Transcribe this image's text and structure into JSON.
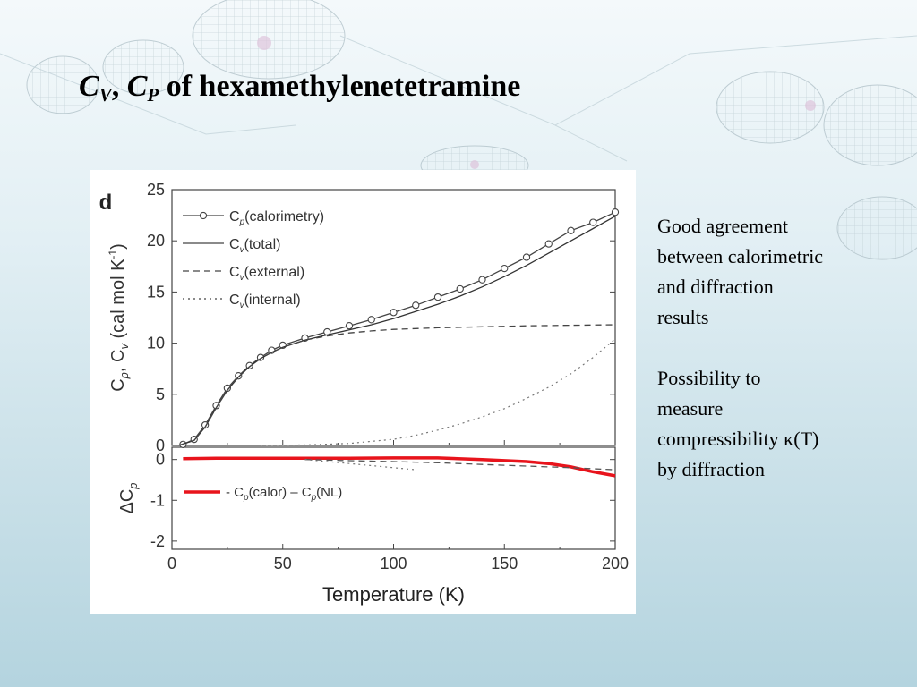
{
  "slide": {
    "title": {
      "c1": "C",
      "sub1": "V",
      "sep": ", ",
      "c2": "C",
      "sub2": "P",
      "rest": " of  hexamethylenetetramine"
    },
    "notes": [
      "Good agreement between calorimetric and diffraction results",
      "Possibility to measure compressibility κ(T) by diffraction"
    ]
  },
  "chart_data": [
    {
      "type": "line",
      "panel_label": "d",
      "ylabel": "Cp, Cv (cal mol K-1)",
      "ylim": [
        0,
        25
      ],
      "yticks": [
        0,
        5,
        10,
        15,
        20,
        25
      ],
      "xlim": [
        0,
        200
      ],
      "legend": [
        "Cp(calorimetry)",
        "Cv(total)",
        "Cv(external)",
        "Cv(internal)"
      ],
      "legend_position": "top-left",
      "series": [
        {
          "name": "Cp(calorimetry)",
          "style": "circles-line",
          "color": "#444444",
          "x": [
            5,
            10,
            15,
            20,
            25,
            30,
            35,
            40,
            45,
            50,
            60,
            70,
            80,
            90,
            100,
            110,
            120,
            130,
            140,
            150,
            160,
            170,
            180,
            190,
            200
          ],
          "y": [
            0.1,
            0.6,
            2.0,
            3.9,
            5.6,
            6.8,
            7.8,
            8.6,
            9.3,
            9.8,
            10.5,
            11.1,
            11.7,
            12.3,
            13.0,
            13.7,
            14.5,
            15.3,
            16.2,
            17.3,
            18.4,
            19.7,
            21.0,
            21.8,
            22.8
          ]
        },
        {
          "name": "Cv(total)",
          "style": "solid",
          "color": "#333333",
          "x": [
            3,
            10,
            15,
            20,
            25,
            30,
            35,
            40,
            45,
            50,
            60,
            70,
            80,
            90,
            100,
            110,
            120,
            130,
            140,
            150,
            160,
            170,
            180,
            190,
            200
          ],
          "y": [
            0,
            0.5,
            1.8,
            3.7,
            5.4,
            6.7,
            7.7,
            8.5,
            9.1,
            9.6,
            10.3,
            10.8,
            11.3,
            11.8,
            12.4,
            13.1,
            13.8,
            14.6,
            15.5,
            16.5,
            17.6,
            18.8,
            20.0,
            21.2,
            22.4
          ]
        },
        {
          "name": "Cv(external)",
          "style": "dashed",
          "color": "#444444",
          "x": [
            3,
            10,
            15,
            20,
            25,
            30,
            35,
            40,
            45,
            50,
            60,
            70,
            80,
            90,
            100,
            120,
            140,
            160,
            180,
            200
          ],
          "y": [
            0,
            0.5,
            1.8,
            3.7,
            5.4,
            6.7,
            7.7,
            8.5,
            9.1,
            9.6,
            10.3,
            10.7,
            11.0,
            11.2,
            11.35,
            11.5,
            11.6,
            11.7,
            11.75,
            11.8
          ]
        },
        {
          "name": "Cv(internal)",
          "style": "dotted",
          "color": "#777777",
          "x": [
            40,
            60,
            80,
            100,
            110,
            120,
            130,
            140,
            150,
            160,
            170,
            180,
            190,
            200
          ],
          "y": [
            0,
            0.05,
            0.2,
            0.6,
            1.0,
            1.5,
            2.1,
            2.8,
            3.6,
            4.6,
            5.7,
            7.0,
            8.6,
            10.4
          ]
        }
      ]
    },
    {
      "type": "line",
      "xlabel": "Temperature (K)",
      "ylabel": "ΔCp",
      "xlim": [
        0,
        200
      ],
      "xticks": [
        0,
        50,
        100,
        150,
        200
      ],
      "ylim": [
        -2.2,
        0.3
      ],
      "yticks": [
        0,
        -1,
        -2
      ],
      "legend": [
        "Cp(calor) – Cp(NL)"
      ],
      "legend_position": "middle-left",
      "series": [
        {
          "name": "Cp(calor) – Cp(NL)",
          "style": "thick-solid",
          "color": "#e8141c",
          "x": [
            5,
            20,
            40,
            60,
            80,
            100,
            120,
            140,
            160,
            170,
            180,
            190,
            200
          ],
          "y": [
            0.02,
            0.03,
            0.03,
            0.03,
            0.03,
            0.04,
            0.04,
            0.0,
            -0.05,
            -0.1,
            -0.18,
            -0.3,
            -0.4
          ]
        },
        {
          "name": "dashed-reference",
          "style": "dashed",
          "color": "#555555",
          "x": [
            60,
            80,
            100,
            120,
            140,
            160,
            180,
            200
          ],
          "y": [
            0.0,
            -0.03,
            -0.05,
            -0.08,
            -0.12,
            -0.16,
            -0.2,
            -0.25
          ]
        },
        {
          "name": "dotted-reference",
          "style": "dotted",
          "color": "#777777",
          "x": [
            60,
            70,
            80,
            90,
            100,
            110
          ],
          "y": [
            0.0,
            -0.05,
            -0.1,
            -0.15,
            -0.2,
            -0.25
          ]
        }
      ]
    }
  ]
}
